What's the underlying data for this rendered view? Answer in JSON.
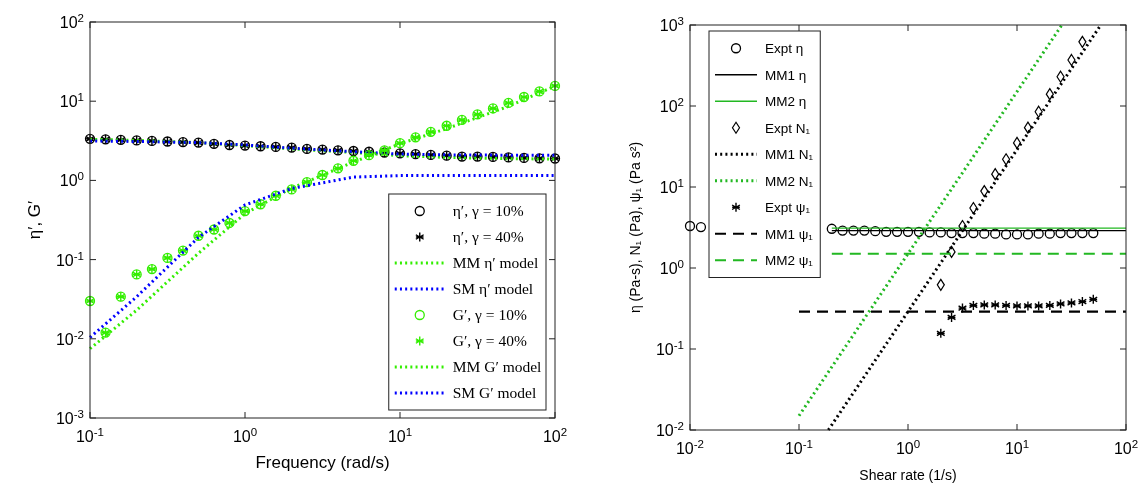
{
  "chart_data": [
    {
      "type": "scatter",
      "xlabel": "Frequency (rad/s)",
      "ylabel": "η′, G′",
      "log": "xy",
      "xlim": [
        0.1,
        100
      ],
      "ylim": [
        0.001,
        100
      ],
      "xticks": [
        {
          "value": 0.1,
          "label": "10$^{-1}$"
        },
        {
          "value": 1,
          "label": "10$^{0}$"
        },
        {
          "value": 10,
          "label": "10$^{1}$"
        },
        {
          "value": 100,
          "label": "10$^{2}$"
        }
      ],
      "yticks": [
        {
          "value": 0.001,
          "label": "10$^{-3}$"
        },
        {
          "value": 0.01,
          "label": "10$^{-2}$"
        },
        {
          "value": 0.1,
          "label": "10$^{-1}$"
        },
        {
          "value": 1,
          "label": "10$^{0}$"
        },
        {
          "value": 10,
          "label": "10$^{1}$"
        },
        {
          "value": 100,
          "label": "10$^{2}$"
        }
      ],
      "grid": false,
      "legend": "bottom right",
      "x": [
        0.1,
        0.126,
        0.158,
        0.2,
        0.251,
        0.316,
        0.398,
        0.501,
        0.631,
        0.794,
        1,
        1.26,
        1.58,
        2,
        2.51,
        3.16,
        3.98,
        5.01,
        6.31,
        7.94,
        10,
        12.6,
        15.8,
        20,
        25.1,
        31.6,
        39.8,
        50.1,
        63.1,
        79.4,
        100
      ],
      "series": [
        {
          "name": "η′, γ = 10%",
          "type": "scatter",
          "marker": "circle",
          "color": "#000000",
          "values": [
            3.35,
            3.3,
            3.25,
            3.2,
            3.15,
            3.1,
            3.05,
            3.0,
            2.9,
            2.8,
            2.75,
            2.7,
            2.65,
            2.6,
            2.5,
            2.45,
            2.4,
            2.35,
            2.3,
            2.25,
            2.2,
            2.15,
            2.1,
            2.05,
            2.0,
            2.0,
            1.98,
            1.95,
            1.92,
            1.9,
            1.89
          ]
        },
        {
          "name": "η′, γ = 40%",
          "type": "scatter",
          "marker": "cross",
          "color": "#000000",
          "values": [
            3.35,
            3.3,
            3.25,
            3.2,
            3.15,
            3.1,
            3.05,
            3.0,
            2.9,
            2.8,
            2.75,
            2.7,
            2.65,
            2.6,
            2.5,
            2.45,
            2.4,
            2.35,
            2.3,
            2.25,
            2.2,
            2.15,
            2.1,
            2.05,
            2.0,
            2.0,
            1.98,
            1.95,
            1.92,
            1.9,
            1.89
          ]
        },
        {
          "name": "MM η′ model",
          "type": "line",
          "line_style": "dotted",
          "color": "#33ee00",
          "x": [
            0.1,
            0.2,
            0.5,
            1,
            2,
            5,
            10,
            20,
            50,
            100
          ],
          "values": [
            3.3,
            3.2,
            3.0,
            2.75,
            2.5,
            2.25,
            2.05,
            1.95,
            1.88,
            1.86
          ]
        },
        {
          "name": "SM η′ model",
          "type": "line",
          "line_style": "dotted",
          "color": "#0000ff",
          "x": [
            0.1,
            0.2,
            0.5,
            1,
            2,
            5,
            10,
            20,
            50,
            100
          ],
          "values": [
            3.15,
            3.1,
            3.0,
            2.8,
            2.55,
            2.3,
            2.15,
            2.1,
            2.08,
            2.08
          ]
        },
        {
          "name": "G′, γ = 10%",
          "type": "scatter",
          "marker": "circle",
          "color": "#33ee00",
          "values": [
            0.03,
            0.012,
            0.034,
            0.065,
            0.076,
            0.105,
            0.13,
            0.2,
            0.24,
            0.29,
            0.41,
            0.5,
            0.64,
            0.77,
            0.95,
            1.17,
            1.42,
            1.77,
            2.08,
            2.4,
            2.95,
            3.5,
            4.1,
            4.9,
            5.8,
            6.8,
            8.1,
            9.5,
            11.3,
            13.3,
            15.6
          ]
        },
        {
          "name": "G′, γ = 40%",
          "type": "scatter",
          "marker": "cross",
          "color": "#33ee00",
          "values": [
            0.03,
            0.012,
            0.034,
            0.065,
            0.076,
            0.105,
            0.13,
            0.2,
            0.24,
            0.29,
            0.41,
            0.5,
            0.64,
            0.77,
            0.95,
            1.17,
            1.42,
            1.77,
            2.08,
            2.4,
            2.95,
            3.5,
            4.1,
            4.9,
            5.8,
            6.8,
            8.1,
            9.5,
            11.3,
            13.3,
            15.6
          ]
        },
        {
          "name": "MM G′ model",
          "type": "line",
          "line_style": "dotted",
          "color": "#33ee00",
          "x": [
            0.1,
            0.2,
            0.5,
            1,
            2,
            5,
            10,
            20,
            50,
            100
          ],
          "values": [
            0.0075,
            0.023,
            0.12,
            0.38,
            0.8,
            1.7,
            2.9,
            4.5,
            8.6,
            15.5
          ]
        },
        {
          "name": "SM G′ model",
          "type": "line",
          "line_style": "dotted",
          "color": "#0000ff",
          "x": [
            0.1,
            0.2,
            0.5,
            1,
            2,
            5,
            10,
            20,
            50,
            100
          ],
          "values": [
            0.0104,
            0.034,
            0.19,
            0.49,
            0.79,
            1.1,
            1.15,
            1.15,
            1.15,
            1.15
          ]
        }
      ]
    },
    {
      "type": "scatter",
      "xlabel": "Shear rate (1/s)",
      "ylabel": "η (Pa-s), N₁ (Pa), ψ₁ (Pa s²)",
      "log": "xy",
      "xlim": [
        0.01,
        100
      ],
      "ylim": [
        0.01,
        1000
      ],
      "xticks": [
        {
          "value": 0.01,
          "label": "10$^{-2}$"
        },
        {
          "value": 0.1,
          "label": "10$^{-1}$"
        },
        {
          "value": 1,
          "label": "10$^{0}$"
        },
        {
          "value": 10,
          "label": "10$^{1}$"
        },
        {
          "value": 100,
          "label": "10$^{2}$"
        }
      ],
      "yticks": [
        {
          "value": 0.01,
          "label": "10$^{-2}$"
        },
        {
          "value": 0.1,
          "label": "10$^{-1}$"
        },
        {
          "value": 1,
          "label": "10$^{0}$"
        },
        {
          "value": 10,
          "label": "10$^{1}$"
        },
        {
          "value": 100,
          "label": "10$^{2}$"
        },
        {
          "value": 1000,
          "label": "10$^{3}$"
        }
      ],
      "grid": false,
      "legend": "top left",
      "series": [
        {
          "name": "Expt η",
          "type": "scatter",
          "marker": "circle",
          "color": "#000000",
          "x": [
            0.01,
            0.0126,
            0.2,
            0.251,
            0.316,
            0.398,
            0.501,
            0.631,
            0.794,
            1,
            1.26,
            1.58,
            2,
            2.51,
            3.16,
            3.98,
            5.01,
            6.31,
            7.94,
            10,
            12.6,
            15.8,
            20,
            25.1,
            31.6,
            39.8,
            50.1
          ],
          "values": [
            3.3,
            3.2,
            3.05,
            2.9,
            2.9,
            2.9,
            2.85,
            2.8,
            2.8,
            2.8,
            2.8,
            2.75,
            2.75,
            2.7,
            2.7,
            2.7,
            2.65,
            2.65,
            2.6,
            2.6,
            2.6,
            2.65,
            2.65,
            2.7,
            2.7,
            2.7,
            2.7
          ]
        },
        {
          "name": "MM1 η",
          "type": "line",
          "line_style": "solid",
          "color": "#000000",
          "x": [
            0.2,
            100
          ],
          "values": [
            2.9,
            2.9
          ]
        },
        {
          "name": "MM2 η",
          "type": "line",
          "line_style": "solid",
          "color": "#22b822",
          "x": [
            0.2,
            100
          ],
          "values": [
            3.1,
            3.1
          ]
        },
        {
          "name": "Expt N₁",
          "type": "scatter",
          "marker": "diamond",
          "color": "#000000",
          "x": [
            2,
            2.51,
            3.16,
            3.98,
            5.01,
            6.31,
            7.94,
            10,
            12.6,
            15.8,
            20,
            25.1,
            31.6,
            39.8
          ],
          "values": [
            0.62,
            1.58,
            3.3,
            5.5,
            8.9,
            14.4,
            22,
            35,
            54,
            85,
            140,
            230,
            370,
            620
          ]
        },
        {
          "name": "MM1 N₁",
          "type": "line",
          "line_style": "dotted",
          "color": "#000000",
          "x": [
            0.186,
            58.7
          ],
          "values": [
            0.01,
            1000
          ]
        },
        {
          "name": "MM2 N₁",
          "type": "line",
          "line_style": "dotted",
          "color": "#22b822",
          "x": [
            0.1,
            25.8
          ],
          "values": [
            0.015,
            1000
          ]
        },
        {
          "name": "Expt ψ₁",
          "type": "scatter",
          "marker": "cross",
          "color": "#000000",
          "x": [
            2,
            2.51,
            3.16,
            3.98,
            5.01,
            6.31,
            7.94,
            10,
            12.6,
            15.8,
            20,
            25.1,
            31.6,
            39.8,
            50.1
          ],
          "values": [
            0.156,
            0.245,
            0.32,
            0.345,
            0.35,
            0.35,
            0.345,
            0.34,
            0.34,
            0.34,
            0.345,
            0.36,
            0.37,
            0.385,
            0.41
          ]
        },
        {
          "name": "MM1 ψ₁",
          "type": "line",
          "line_style": "dashed",
          "color": "#000000",
          "x": [
            0.1,
            100
          ],
          "values": [
            0.29,
            0.29
          ]
        },
        {
          "name": "MM2 ψ₁",
          "type": "line",
          "line_style": "dashed",
          "color": "#22b822",
          "x": [
            0.2,
            100
          ],
          "values": [
            1.5,
            1.5
          ]
        }
      ]
    }
  ]
}
